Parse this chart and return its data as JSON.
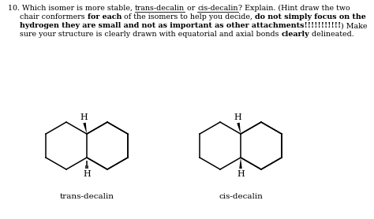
{
  "background_color": "#ffffff",
  "label_trans": "trans-decalin",
  "label_cis": "cis-decalin",
  "label_H": "H",
  "fig_width": 4.74,
  "fig_height": 2.78,
  "dpi": 100,
  "text_lines": [
    {
      "parts": [
        {
          "t": "10. Which isomer is more stable, ",
          "bold": false,
          "underline": false
        },
        {
          "t": "trans-decalin",
          "bold": false,
          "underline": true
        },
        {
          "t": " or ",
          "bold": false,
          "underline": false
        },
        {
          "t": "cis-decalin",
          "bold": false,
          "underline": true
        },
        {
          "t": "? Explain. (Hint draw the two",
          "bold": false,
          "underline": false
        }
      ]
    },
    {
      "parts": [
        {
          "t": "chair conformers ",
          "bold": false,
          "underline": false
        },
        {
          "t": "for each",
          "bold": true,
          "underline": false
        },
        {
          "t": " of the isomers to help you decide, ",
          "bold": false,
          "underline": false
        },
        {
          "t": "do not simply focus on the",
          "bold": true,
          "underline": false
        }
      ]
    },
    {
      "parts": [
        {
          "t": "hydrogen they are small and not as important as other attachments!!!!!!!!!!!",
          "bold": true,
          "underline": false
        },
        {
          "t": ") Make",
          "bold": false,
          "underline": false
        }
      ]
    },
    {
      "parts": [
        {
          "t": "sure your structure is clearly drawn with equatorial and axial bonds ",
          "bold": false,
          "underline": false
        },
        {
          "t": "clearly",
          "bold": true,
          "underline": false
        },
        {
          "t": " delineated.",
          "bold": false,
          "underline": false
        }
      ]
    }
  ]
}
